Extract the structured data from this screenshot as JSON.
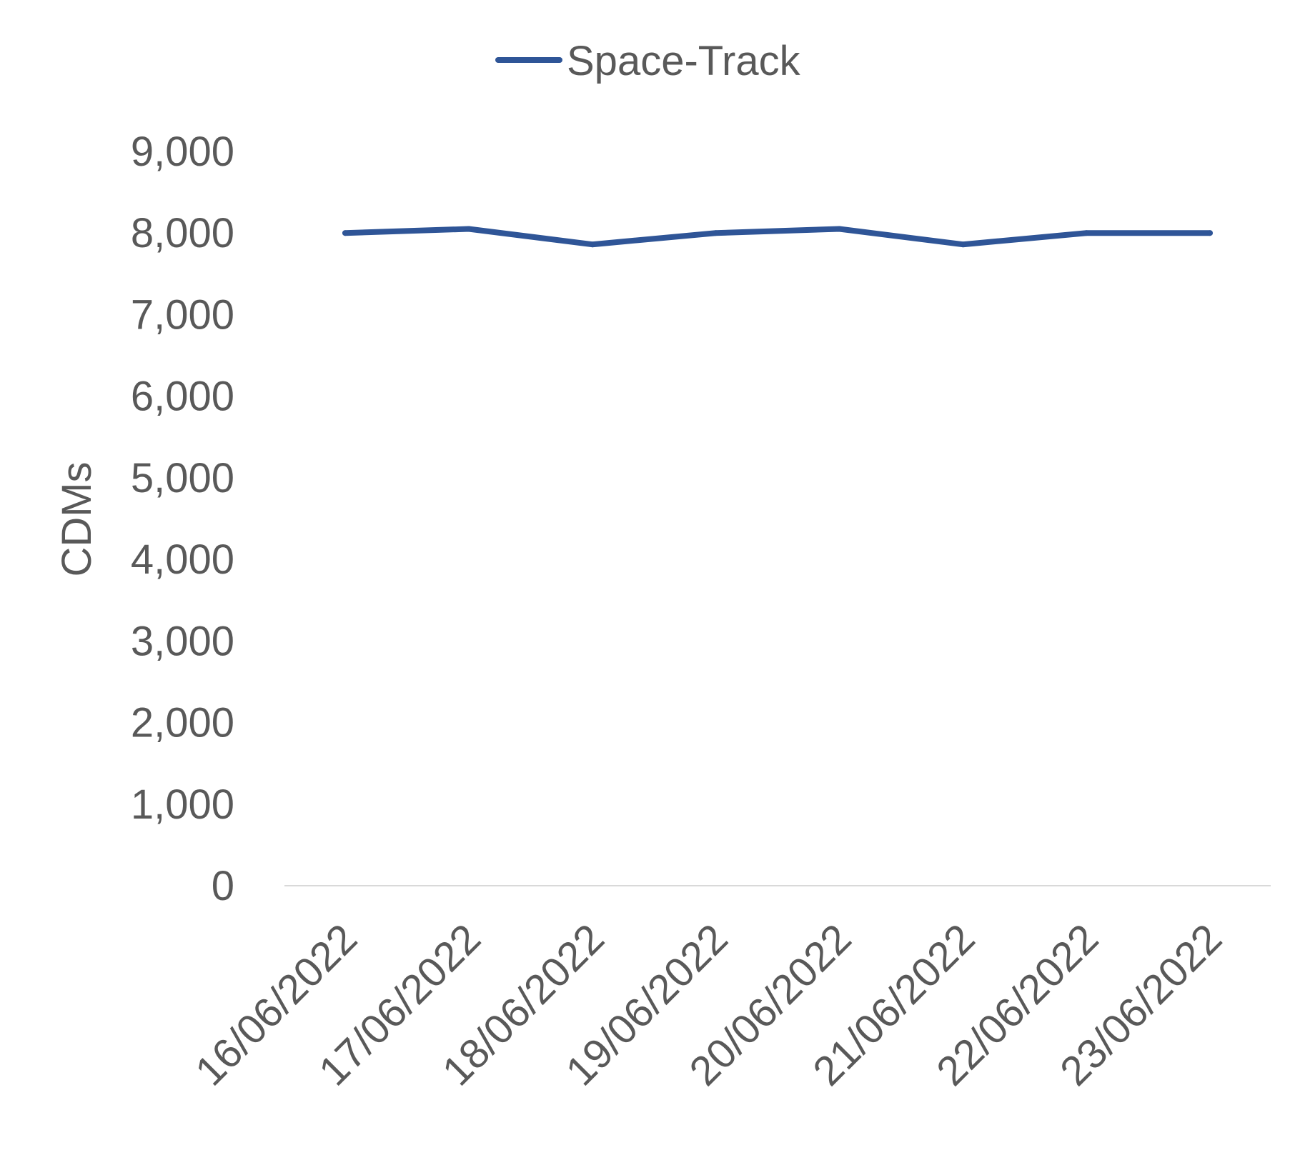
{
  "chart_data": {
    "type": "line",
    "title": "",
    "xlabel": "",
    "ylabel": "CDMs",
    "categories": [
      "16/06/2022",
      "17/06/2022",
      "18/06/2022",
      "19/06/2022",
      "20/06/2022",
      "21/06/2022",
      "22/06/2022",
      "23/06/2022"
    ],
    "series": [
      {
        "name": "Space-Track",
        "values": [
          8000,
          8050,
          7860,
          8000,
          8050,
          7860,
          8000,
          8000
        ],
        "color": "#2F5597"
      }
    ],
    "ylim": [
      0,
      9000
    ],
    "yticks": [
      "0",
      "1,000",
      "2,000",
      "3,000",
      "4,000",
      "5,000",
      "6,000",
      "7,000",
      "8,000",
      "9,000"
    ],
    "grid": false,
    "legend": "top-center",
    "axis_line_color": "#D9D9D9",
    "text_color": "#595959"
  }
}
